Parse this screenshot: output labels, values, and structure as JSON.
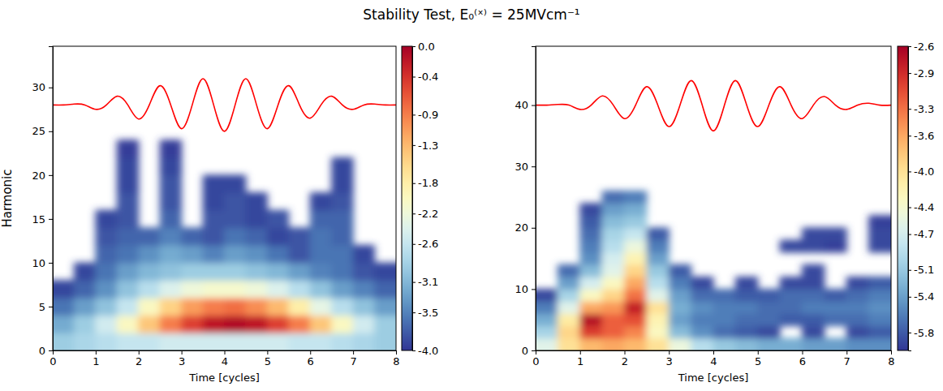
{
  "title": "Stability Test, E₀⁽ˣ⁾ = 25MVcm⁻¹",
  "chart_data": [
    {
      "type": "heatmap",
      "xlabel": "Time [cycles]",
      "ylabel": "Harmonic",
      "xlim": [
        0,
        8
      ],
      "xticks": [
        0,
        1,
        2,
        3,
        4,
        5,
        6,
        7,
        8
      ],
      "ylim": [
        0,
        34.7
      ],
      "yticks": [
        0,
        5,
        10,
        15,
        20,
        25,
        30
      ],
      "colorbar_lim": [
        -4.0,
        0.0
      ],
      "colorbar_ticks": [
        {
          "value": 0,
          "label": "0.0"
        },
        -0.4,
        -0.9,
        -1.3,
        -1.8,
        -2.2,
        -2.6,
        -3.1,
        -3.5,
        {
          "value": -4,
          "label": "-4.0"
        }
      ],
      "x": [
        0.25,
        0.75,
        1.25,
        1.75,
        2.25,
        2.75,
        3.25,
        3.75,
        4.25,
        4.75,
        5.25,
        5.75,
        6.25,
        6.75,
        7.25,
        7.75
      ],
      "y": [
        1,
        3,
        5,
        7,
        9,
        11,
        13,
        15,
        17,
        19,
        21,
        23
      ],
      "z": [
        [
          -2.9,
          -2.8,
          -2.7,
          -2.6,
          -2.6,
          -2.5,
          -2.5,
          -2.5,
          -2.5,
          -2.5,
          -2.5,
          -2.6,
          -2.6,
          -2.7,
          -2.8,
          -2.9
        ],
        [
          -3.2,
          -2.9,
          -2.5,
          -2.0,
          -1.4,
          -0.9,
          -0.5,
          -0.2,
          -0.1,
          -0.2,
          -0.5,
          -0.9,
          -1.4,
          -2.0,
          -2.5,
          -2.9
        ],
        [
          -3.6,
          -3.3,
          -3.0,
          -2.6,
          -2.0,
          -1.5,
          -1.1,
          -0.9,
          -0.8,
          -1.0,
          -1.3,
          -1.8,
          -2.3,
          -2.7,
          -3.0,
          -3.3
        ],
        [
          -3.9,
          -3.7,
          -3.4,
          -3.0,
          -2.7,
          -2.4,
          -2.2,
          -2.1,
          -2.1,
          -2.2,
          -2.4,
          -2.7,
          -3.0,
          -3.3,
          -3.5,
          -3.7
        ],
        [
          null,
          -3.9,
          -3.6,
          -3.3,
          -3.1,
          -3.0,
          -2.9,
          -2.9,
          -2.9,
          -3.0,
          -3.1,
          -3.3,
          -3.5,
          -3.6,
          -3.8,
          -3.9
        ],
        [
          null,
          null,
          -3.7,
          -3.6,
          -3.4,
          -3.2,
          -3.3,
          -3.5,
          -3.3,
          -3.4,
          -3.6,
          -3.8,
          -3.6,
          -3.6,
          -3.9,
          null
        ],
        [
          null,
          null,
          -3.8,
          -3.7,
          -3.7,
          -3.5,
          -3.7,
          -3.8,
          -3.6,
          -3.7,
          -3.9,
          -3.8,
          -3.6,
          -3.7,
          null,
          null
        ],
        [
          null,
          null,
          -3.9,
          -3.8,
          null,
          -3.7,
          null,
          -3.8,
          -3.8,
          -3.9,
          -3.8,
          null,
          -3.7,
          -3.7,
          null,
          null
        ],
        [
          null,
          null,
          null,
          -3.8,
          null,
          -3.8,
          null,
          -3.9,
          -3.8,
          -3.9,
          null,
          null,
          -3.9,
          -3.8,
          null,
          null
        ],
        [
          null,
          null,
          null,
          -3.9,
          null,
          -3.8,
          null,
          -3.9,
          -3.9,
          null,
          null,
          null,
          null,
          -3.9,
          null,
          null
        ],
        [
          null,
          null,
          null,
          -3.9,
          null,
          -3.9,
          null,
          null,
          null,
          null,
          null,
          null,
          null,
          -3.9,
          null,
          null
        ],
        [
          null,
          null,
          null,
          -3.95,
          null,
          -3.95,
          null,
          null,
          null,
          null,
          null,
          null,
          null,
          null,
          null,
          null
        ]
      ],
      "series": [
        {
          "type": "line",
          "color": "#ff0000",
          "x": [
            0,
            0.25,
            0.5,
            0.75,
            1,
            1.25,
            1.5,
            1.75,
            2,
            2.25,
            2.5,
            2.75,
            3,
            3.25,
            3.5,
            3.75,
            4,
            4.25,
            4.5,
            4.75,
            5,
            5.25,
            5.5,
            5.75,
            6,
            6.25,
            6.5,
            6.75,
            7,
            7.25,
            7.5,
            7.75,
            8
          ],
          "values": [
            28,
            28,
            28.1,
            28,
            27.5,
            28,
            29,
            28,
            26.4,
            28,
            30.2,
            28,
            25.3,
            28,
            31,
            28,
            25,
            28,
            31,
            28,
            25.3,
            28,
            30.2,
            28,
            26.5,
            28,
            29,
            28,
            27.5,
            28,
            28.1,
            28,
            28
          ]
        }
      ]
    },
    {
      "type": "heatmap",
      "xlabel": "Time [cycles]",
      "xlim": [
        0,
        8
      ],
      "xticks": [
        0,
        1,
        2,
        3,
        4,
        5,
        6,
        7,
        8
      ],
      "ylim": [
        0,
        49.6
      ],
      "yticks": [
        0,
        10,
        20,
        30,
        40
      ],
      "colorbar_lim": [
        -6.0,
        -2.6
      ],
      "colorbar_ticks": [
        -2.6,
        -2.9,
        -3.3,
        -3.6,
        {
          "value": -4,
          "label": "-4.0"
        },
        -4.4,
        -4.7,
        -5.1,
        -5.4,
        -5.8
      ],
      "x": [
        0.25,
        0.75,
        1.25,
        1.75,
        2.25,
        2.75,
        3.25,
        3.75,
        4.25,
        4.75,
        5.25,
        5.75,
        6.25,
        6.75,
        7.25,
        7.75
      ],
      "y": [
        1,
        3,
        5,
        7,
        9,
        11,
        13,
        15,
        17,
        19,
        21,
        23,
        25
      ],
      "z": [
        [
          -4.6,
          -4.0,
          -3.7,
          -3.6,
          -3.7,
          -4.0,
          -4.5,
          -4.9,
          -5.1,
          -5.2,
          -5.3,
          -5.3,
          -5.4,
          -5.4,
          -5.5,
          -5.5
        ],
        [
          -5.0,
          -3.9,
          -3.0,
          -3.2,
          -3.4,
          -4.3,
          -5.2,
          -5.5,
          -5.7,
          -5.8,
          -5.9,
          null,
          -5.9,
          null,
          -5.9,
          -5.8
        ],
        [
          -5.3,
          -4.1,
          -2.7,
          -3.2,
          -3.1,
          -4.2,
          -5.4,
          -5.6,
          -5.6,
          -5.7,
          -5.7,
          -5.8,
          -5.8,
          -5.7,
          -5.7,
          -5.6
        ],
        [
          -5.6,
          -4.6,
          -3.6,
          -3.5,
          -2.8,
          -4.0,
          -5.3,
          -5.5,
          -5.6,
          -5.6,
          -5.7,
          -5.7,
          -5.6,
          -5.6,
          -5.6,
          -5.5
        ],
        [
          -5.9,
          -5.0,
          -4.3,
          -3.9,
          -3.3,
          -4.6,
          -5.4,
          -5.7,
          -5.7,
          -5.8,
          -5.8,
          -5.7,
          -5.7,
          -5.8,
          -5.7,
          -5.6
        ],
        [
          null,
          -5.4,
          -4.7,
          -4.3,
          -3.6,
          -4.9,
          -5.6,
          -5.9,
          null,
          -5.9,
          null,
          -5.9,
          -5.9,
          null,
          -5.9,
          -5.8
        ],
        [
          null,
          -5.7,
          -5.2,
          -4.6,
          -3.9,
          -5.1,
          -5.8,
          null,
          null,
          null,
          null,
          null,
          -5.9,
          null,
          null,
          null
        ],
        [
          null,
          null,
          -5.5,
          -4.7,
          -4.2,
          -5.4,
          null,
          null,
          null,
          null,
          null,
          null,
          null,
          null,
          null,
          null
        ],
        [
          null,
          null,
          -5.6,
          -4.9,
          -4.5,
          -5.6,
          null,
          null,
          null,
          null,
          null,
          -5.9,
          -5.9,
          -5.95,
          null,
          -5.9
        ],
        [
          null,
          null,
          -5.7,
          -5.0,
          -4.8,
          -5.8,
          null,
          null,
          null,
          null,
          null,
          null,
          -5.9,
          -5.9,
          null,
          -5.9
        ],
        [
          null,
          null,
          -5.8,
          -5.2,
          -5.1,
          null,
          null,
          null,
          null,
          null,
          null,
          null,
          null,
          null,
          null,
          -5.95
        ],
        [
          null,
          null,
          -5.9,
          -5.4,
          -5.3,
          null,
          null,
          null,
          null,
          null,
          null,
          null,
          null,
          null,
          null,
          null
        ],
        [
          null,
          null,
          null,
          -5.7,
          -5.6,
          null,
          null,
          null,
          null,
          null,
          null,
          null,
          null,
          null,
          null,
          null
        ]
      ],
      "series": [
        {
          "type": "line",
          "color": "#ff0000",
          "x": [
            0,
            0.25,
            0.5,
            0.75,
            1,
            1.25,
            1.5,
            1.75,
            2,
            2.25,
            2.5,
            2.75,
            3,
            3.25,
            3.5,
            3.75,
            4,
            4.25,
            4.5,
            4.75,
            5,
            5.25,
            5.5,
            5.75,
            6,
            6.25,
            6.5,
            6.75,
            7,
            7.25,
            7.5,
            7.75,
            8
          ],
          "values": [
            40,
            40,
            40.1,
            40,
            39.3,
            40,
            41.5,
            40,
            37.8,
            40,
            43,
            40,
            36.5,
            40,
            44,
            40,
            35.8,
            40,
            44,
            40,
            36.5,
            40,
            43,
            40,
            37.8,
            40,
            41.4,
            40,
            39.3,
            40,
            40.3,
            40,
            40
          ]
        }
      ]
    }
  ]
}
